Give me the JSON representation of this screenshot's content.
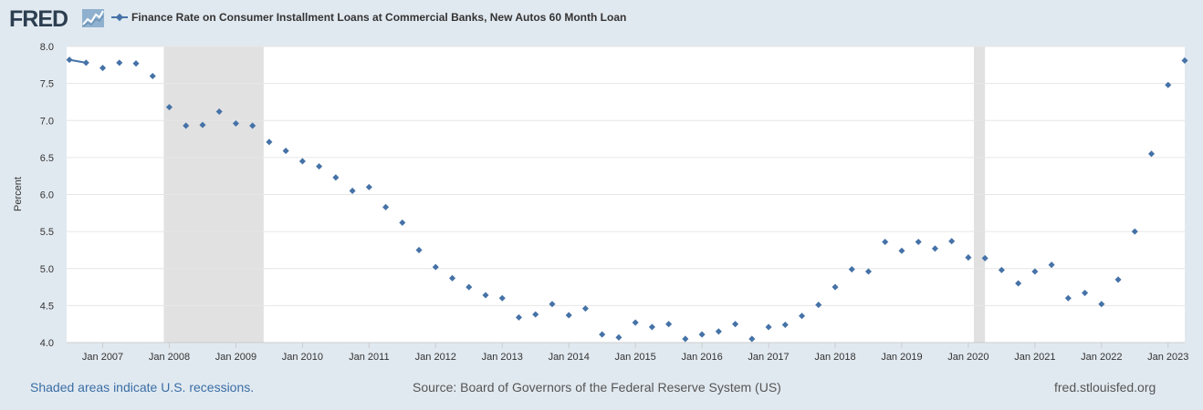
{
  "header": {
    "logo_text": "FRED",
    "title": "Finance Rate on Consumer Installment Loans at Commercial Banks, New Autos 60 Month Loan"
  },
  "footer": {
    "recession_note": "Shaded areas indicate U.S. recessions.",
    "source": "Source: Board of Governors of the Federal Reserve System (US)",
    "site": "fred.stlouisfed.org"
  },
  "colors": {
    "series": "#4572a7",
    "recession": "#e1e1e1",
    "background": "#e1e9f0",
    "plot": "#ffffff",
    "grid": "#e6e6e6"
  },
  "chart_data": {
    "type": "scatter",
    "title": "Finance Rate on Consumer Installment Loans at Commercial Banks, New Autos 60 Month Loan",
    "xlabel": "",
    "ylabel": "Percent",
    "xlim": [
      2006.458,
      2023.25
    ],
    "ylim": [
      4.0,
      8.0
    ],
    "yticks": [
      "4.0",
      "4.5",
      "5.0",
      "5.5",
      "6.0",
      "6.5",
      "7.0",
      "7.5",
      "8.0"
    ],
    "xticks": [
      "Jan 2007",
      "Jan 2008",
      "Jan 2009",
      "Jan 2010",
      "Jan 2011",
      "Jan 2012",
      "Jan 2013",
      "Jan 2014",
      "Jan 2015",
      "Jan 2016",
      "Jan 2017",
      "Jan 2018",
      "Jan 2019",
      "Jan 2020",
      "Jan 2021",
      "Jan 2022",
      "Jan 2023"
    ],
    "grid": true,
    "recessions": [
      {
        "start": 2007.917,
        "end": 2009.417
      },
      {
        "start": 2020.083,
        "end": 2020.25
      }
    ],
    "connected_segments": [
      [
        0,
        1
      ]
    ],
    "series": [
      {
        "name": "Finance Rate on Consumer Installment Loans at Commercial Banks, New Autos 60 Month Loan",
        "x": [
          2006.5,
          2006.75,
          2007.0,
          2007.25,
          2007.5,
          2007.75,
          2008.0,
          2008.25,
          2008.5,
          2008.75,
          2009.0,
          2009.25,
          2009.5,
          2009.75,
          2010.0,
          2010.25,
          2010.5,
          2010.75,
          2011.0,
          2011.25,
          2011.5,
          2011.75,
          2012.0,
          2012.25,
          2012.5,
          2012.75,
          2013.0,
          2013.25,
          2013.5,
          2013.75,
          2014.0,
          2014.25,
          2014.5,
          2014.75,
          2015.0,
          2015.25,
          2015.5,
          2015.75,
          2016.0,
          2016.25,
          2016.5,
          2016.75,
          2017.0,
          2017.25,
          2017.5,
          2017.75,
          2018.0,
          2018.25,
          2018.5,
          2018.75,
          2019.0,
          2019.25,
          2019.5,
          2019.75,
          2020.0,
          2020.25,
          2020.5,
          2020.75,
          2021.0,
          2021.25,
          2021.5,
          2021.75,
          2022.0,
          2022.25,
          2022.5,
          2022.75,
          2023.0,
          2023.25
        ],
        "y": [
          7.82,
          7.78,
          7.71,
          7.78,
          7.77,
          7.6,
          7.18,
          6.93,
          6.94,
          7.12,
          6.96,
          6.93,
          6.71,
          6.59,
          6.45,
          6.38,
          6.23,
          6.05,
          6.1,
          5.83,
          5.62,
          5.25,
          5.02,
          4.87,
          4.75,
          4.64,
          4.6,
          4.34,
          4.38,
          4.52,
          4.37,
          4.46,
          4.11,
          4.07,
          4.27,
          4.21,
          4.25,
          4.05,
          4.11,
          4.15,
          4.25,
          4.05,
          4.21,
          4.24,
          4.36,
          4.51,
          4.75,
          4.99,
          4.96,
          5.36,
          5.24,
          5.36,
          5.27,
          5.37,
          5.15,
          5.14,
          4.98,
          4.8,
          4.96,
          5.05,
          4.6,
          4.67,
          4.52,
          4.85,
          5.5,
          6.55,
          7.48,
          7.81
        ]
      }
    ]
  }
}
